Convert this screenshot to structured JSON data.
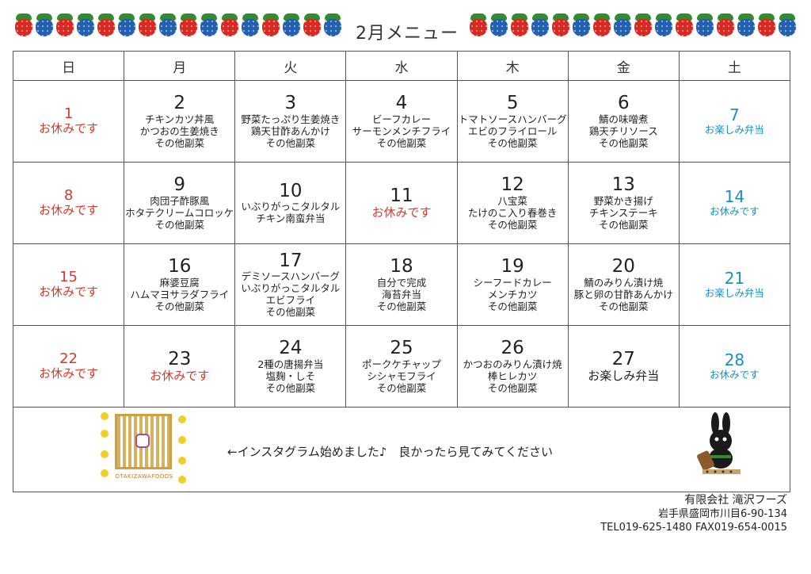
{
  "title": "2月メニュー",
  "weekdays": [
    "日",
    "月",
    "火",
    "水",
    "木",
    "金",
    "土"
  ],
  "weeks": [
    [
      {
        "date": "1",
        "items": [
          "お休みです"
        ],
        "type": "sun"
      },
      {
        "date": "2",
        "items": [
          "チキンカツ丼風",
          "かつおの生姜焼き",
          "その他副菜"
        ],
        "type": "normal"
      },
      {
        "date": "3",
        "items": [
          "野菜たっぷり生姜焼き",
          "鶏天甘酢あんかけ",
          "その他副菜"
        ],
        "type": "normal"
      },
      {
        "date": "4",
        "items": [
          "ビーフカレー",
          "サーモンメンチフライ",
          "その他副菜"
        ],
        "type": "normal"
      },
      {
        "date": "5",
        "items": [
          "トマトソースハンバーグ",
          "エビのフライロール",
          "その他副菜"
        ],
        "type": "normal"
      },
      {
        "date": "6",
        "items": [
          "鯖の味噌煮",
          "鶏天チリソース",
          "その他副菜"
        ],
        "type": "normal"
      },
      {
        "date": "7",
        "items": [
          "お楽しみ弁当"
        ],
        "type": "sat"
      }
    ],
    [
      {
        "date": "8",
        "items": [
          "お休みです"
        ],
        "type": "sun"
      },
      {
        "date": "9",
        "items": [
          "肉団子酢豚風",
          "ホタテクリームコロッケ",
          "その他副菜"
        ],
        "type": "normal"
      },
      {
        "date": "10",
        "items": [
          "いぶりがっこタルタル",
          "チキン南蛮弁当"
        ],
        "type": "normal"
      },
      {
        "date": "11",
        "items": [
          "お休みです"
        ],
        "type": "rest"
      },
      {
        "date": "12",
        "items": [
          "八宝菜",
          "たけのこ入り春巻き",
          "その他副菜"
        ],
        "type": "normal"
      },
      {
        "date": "13",
        "items": [
          "野菜かき揚げ",
          "チキンステーキ",
          "その他副菜"
        ],
        "type": "normal"
      },
      {
        "date": "14",
        "items": [
          "お休みです"
        ],
        "type": "sat"
      }
    ],
    [
      {
        "date": "15",
        "items": [
          "お休みです"
        ],
        "type": "sun"
      },
      {
        "date": "16",
        "items": [
          "麻婆豆腐",
          "ハムマヨサラダフライ",
          "その他副菜"
        ],
        "type": "normal"
      },
      {
        "date": "17",
        "items": [
          "デミソースハンバーグ",
          "いぶりがっこタルタル",
          "エビフライ",
          "その他副菜"
        ],
        "type": "normal"
      },
      {
        "date": "18",
        "items": [
          "自分で完成",
          "海苔弁当",
          "その他副菜"
        ],
        "type": "normal"
      },
      {
        "date": "19",
        "items": [
          "シーフードカレー",
          "メンチカツ",
          "その他副菜"
        ],
        "type": "normal"
      },
      {
        "date": "20",
        "items": [
          "鯖のみりん漬け焼",
          "豚と卵の甘酢あんかけ",
          "その他副菜"
        ],
        "type": "normal"
      },
      {
        "date": "21",
        "items": [
          "お楽しみ弁当"
        ],
        "type": "sat"
      }
    ],
    [
      {
        "date": "22",
        "items": [
          "お休みです"
        ],
        "type": "sun"
      },
      {
        "date": "23",
        "items": [
          "お休みです"
        ],
        "type": "rest"
      },
      {
        "date": "24",
        "items": [
          "2種の唐揚弁当",
          "塩麹・しそ",
          "その他副菜"
        ],
        "type": "normal"
      },
      {
        "date": "25",
        "items": [
          "ポークケチャップ",
          "シシャモフライ",
          "その他副菜"
        ],
        "type": "normal"
      },
      {
        "date": "26",
        "items": [
          "かつおのみりん漬け焼",
          "棒ヒレカツ",
          "その他副菜"
        ],
        "type": "normal"
      },
      {
        "date": "27",
        "items": [
          "お楽しみ弁当"
        ],
        "type": "special"
      },
      {
        "date": "28",
        "items": [
          "お休みです"
        ],
        "type": "sat"
      }
    ]
  ],
  "note": "←インスタグラム始めました♪　良かったら見てみてください",
  "qr_label": "OTAKIZAWAFOODS",
  "company": {
    "name": "有限会社 滝沢フーズ",
    "address": "岩手県盛岡市川目6-90-134",
    "contact": "TEL019-625-1480 FAX019-654-0015"
  },
  "colors": {
    "sunday": "#d43a2c",
    "saturday": "#1b8fc2",
    "border": "#555555"
  },
  "icons": {
    "deco": "strawberry-garland-icon",
    "qr": "qr-code-icon",
    "mascot": "rabbit-mascot-icon"
  }
}
